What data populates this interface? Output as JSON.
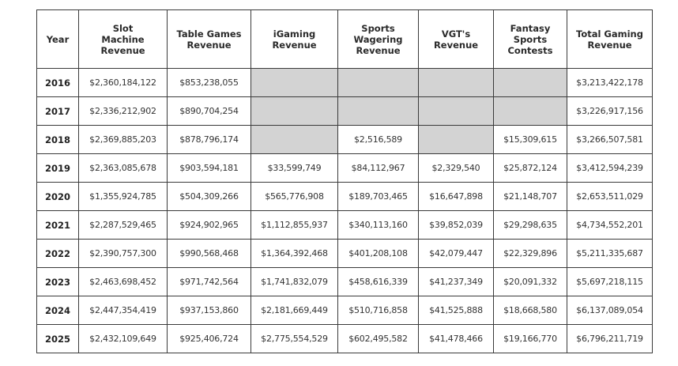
{
  "table": {
    "headers": [
      "Year",
      "Slot Machine Revenue",
      "Table Games Revenue",
      "iGaming Revenue",
      "Sports Wagering Revenue",
      "VGT's Revenue",
      "Fantasy Sports Contests",
      "Total Gaming Revenue"
    ],
    "header_lines": [
      [
        "Year"
      ],
      [
        "Slot",
        "Machine",
        "Revenue"
      ],
      [
        "Table Games",
        "Revenue"
      ],
      [
        "iGaming",
        "Revenue"
      ],
      [
        "Sports",
        "Wagering",
        "Revenue"
      ],
      [
        "VGT's",
        "Revenue"
      ],
      [
        "Fantasy",
        "Sports",
        "Contests"
      ],
      [
        "Total Gaming",
        "Revenue"
      ]
    ],
    "na_color": "#d3d3d3",
    "rows": [
      [
        "2016",
        "$2,360,184,122",
        "$853,238,055",
        "",
        "",
        "",
        "",
        "$3,213,422,178"
      ],
      [
        "2017",
        "$2,336,212,902",
        "$890,704,254",
        "",
        "",
        "",
        "",
        "$3,226,917,156"
      ],
      [
        "2018",
        "$2,369,885,203",
        "$878,796,174",
        "",
        "$2,516,589",
        "",
        "$15,309,615",
        "$3,266,507,581"
      ],
      [
        "2019",
        "$2,363,085,678",
        "$903,594,181",
        "$33,599,749",
        "$84,112,967",
        "$2,329,540",
        "$25,872,124",
        "$3,412,594,239"
      ],
      [
        "2020",
        "$1,355,924,785",
        "$504,309,266",
        "$565,776,908",
        "$189,703,465",
        "$16,647,898",
        "$21,148,707",
        "$2,653,511,029"
      ],
      [
        "2021",
        "$2,287,529,465",
        "$924,902,965",
        "$1,112,855,937",
        "$340,113,160",
        "$39,852,039",
        "$29,298,635",
        "$4,734,552,201"
      ],
      [
        "2022",
        "$2,390,757,300",
        "$990,568,468",
        "$1,364,392,468",
        "$401,208,108",
        "$42,079,447",
        "$22,329,896",
        "$5,211,335,687"
      ],
      [
        "2023",
        "$2,463,698,452",
        "$971,742,564",
        "$1,741,832,079",
        "$458,616,339",
        "$41,237,349",
        "$20,091,332",
        "$5,697,218,115"
      ],
      [
        "2024",
        "$2,447,354,419",
        "$937,153,860",
        "$2,181,669,449",
        "$510,716,858",
        "$41,525,888",
        "$18,668,580",
        "$6,137,089,054"
      ],
      [
        "2025",
        "$2,432,109,649",
        "$925,406,724",
        "$2,775,554,529",
        "$602,495,582",
        "$41,478,466",
        "$19,166,770",
        "$6,796,211,719"
      ]
    ],
    "na_cells": [
      [
        0,
        3
      ],
      [
        0,
        4
      ],
      [
        0,
        5
      ],
      [
        0,
        6
      ],
      [
        1,
        3
      ],
      [
        1,
        4
      ],
      [
        1,
        5
      ],
      [
        1,
        6
      ],
      [
        2,
        3
      ],
      [
        2,
        5
      ]
    ]
  }
}
